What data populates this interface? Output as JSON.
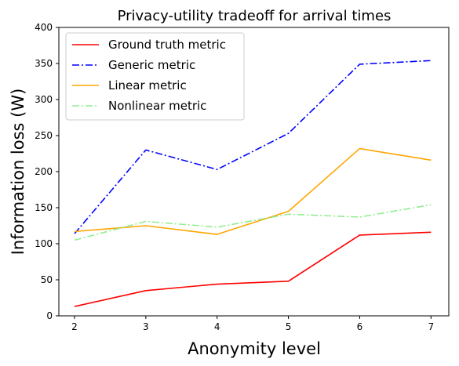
{
  "chart_data": {
    "type": "line",
    "title": "Privacy-utility tradeoff for arrival times",
    "xlabel": "Anonymity level",
    "ylabel": "Information loss (W)",
    "x": [
      2,
      3,
      4,
      5,
      6,
      7
    ],
    "xlim": [
      1.78,
      7.25
    ],
    "ylim": [
      0,
      400
    ],
    "xticks": [
      2,
      3,
      4,
      5,
      6,
      7
    ],
    "yticks": [
      0,
      50,
      100,
      150,
      200,
      250,
      300,
      350,
      400
    ],
    "grid": false,
    "legend_position": "top-left",
    "series": [
      {
        "name": "Ground truth metric",
        "color": "#ff0000",
        "dash": "solid",
        "values": [
          13,
          35,
          44,
          48,
          112,
          116
        ]
      },
      {
        "name": "Generic metric",
        "color": "#0000ff",
        "dash": "dashdot",
        "values": [
          114,
          230,
          203,
          253,
          349,
          354
        ]
      },
      {
        "name": "Linear metric",
        "color": "#ffa500",
        "dash": "solid",
        "values": [
          117,
          125,
          113,
          145,
          232,
          216
        ]
      },
      {
        "name": "Nonlinear metric",
        "color": "#90ee90",
        "dash": "dashdot",
        "values": [
          105,
          131,
          123,
          141,
          137,
          154
        ]
      }
    ]
  }
}
